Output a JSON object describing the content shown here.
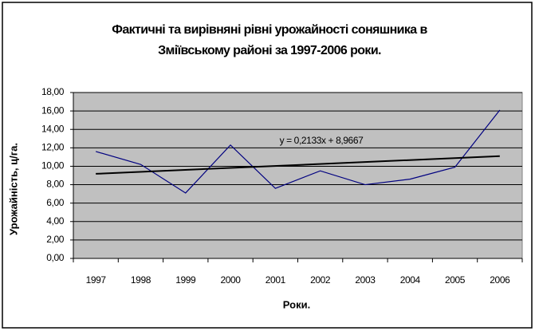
{
  "chart_data": {
    "type": "line",
    "title": [
      "Фактичні та вирівняні рівні урожайності соняшника в",
      "Зміївському районі за 1997-2006 роки."
    ],
    "x_label": "Роки.",
    "y_label": "Урожайність, ц/га.",
    "categories": [
      "1997",
      "1998",
      "1999",
      "2000",
      "2001",
      "2002",
      "2003",
      "2004",
      "2005",
      "2006"
    ],
    "series": [
      {
        "color": "#000080",
        "values": [
          11.6,
          10.2,
          7.1,
          12.3,
          7.6,
          9.5,
          8.0,
          8.6,
          9.9,
          16.1
        ]
      }
    ],
    "trendline": {
      "label": "y = 0,2133x + 8,9667",
      "slope": 0.2133,
      "intercept": 8.9667,
      "color": "#000000"
    },
    "ylim": [
      0,
      18
    ],
    "yticks": [
      {
        "value": 0,
        "label": "0,00"
      },
      {
        "value": 2,
        "label": "2,00"
      },
      {
        "value": 4,
        "label": "4,00"
      },
      {
        "value": 6,
        "label": "6,00"
      },
      {
        "value": 8,
        "label": "8,00"
      },
      {
        "value": 10,
        "label": "10,00"
      },
      {
        "value": 12,
        "label": "12,00"
      },
      {
        "value": 14,
        "label": "14,00"
      },
      {
        "value": 16,
        "label": "16,00"
      },
      {
        "value": 18,
        "label": "18,00"
      }
    ],
    "grid": true,
    "plot_background": "#c0c0c0"
  }
}
